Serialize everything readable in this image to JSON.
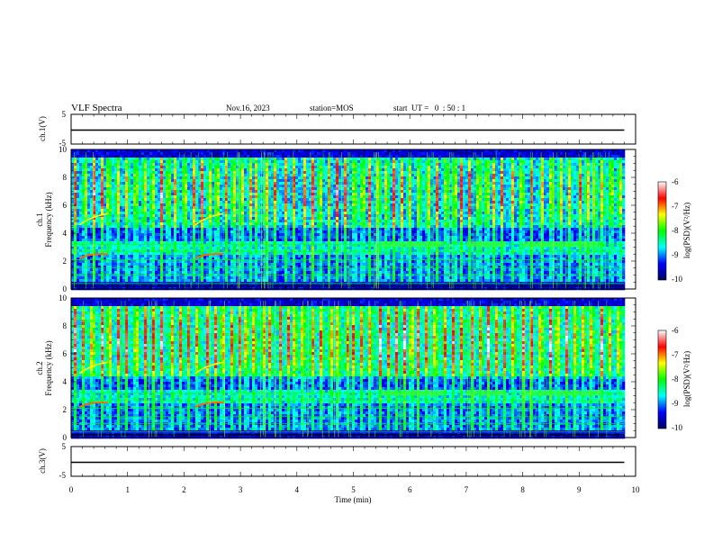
{
  "header": {
    "title": "VLF Spectra",
    "date": "Nov.16, 2023",
    "station": "station=MOS",
    "start": "start  UT =   0  : 50 : 1"
  },
  "colors": {
    "frame": "#000000",
    "colormap": [
      "#000060",
      "#0000ff",
      "#00ffff",
      "#00ff00",
      "#ffff00",
      "#ff0000",
      "#ffffff"
    ]
  },
  "chart_data": [
    {
      "type": "line",
      "name_label": "ch.1(V)",
      "ylim": [
        -5,
        5
      ],
      "yticks": [
        "5",
        "-5"
      ],
      "series": [
        {
          "x": [
            0,
            9.8
          ],
          "y": [
            0,
            0
          ]
        }
      ]
    },
    {
      "type": "heatmap",
      "ylabel": "ch.1\nFrequency (kHz)",
      "ylabel_lines": [
        "ch.1",
        "Frequency (kHz)"
      ],
      "ylim": [
        0,
        10
      ],
      "yticks": [
        "0",
        "2",
        "4",
        "6",
        "8",
        "10"
      ],
      "data_xlim": [
        0,
        9.8
      ],
      "colorbar": {
        "label": "log(PSD)(V²/Hz)",
        "ticks": [
          "-6",
          "-7",
          "-8",
          "-9",
          "-10"
        ],
        "range": [
          -10,
          -6
        ]
      }
    },
    {
      "type": "heatmap",
      "ylabel": "ch.2\nFrequency (kHz)",
      "ylabel_lines": [
        "ch.2",
        "Frequency (kHz)"
      ],
      "ylim": [
        0,
        10
      ],
      "yticks": [
        "0",
        "2",
        "4",
        "6",
        "8",
        "10"
      ],
      "data_xlim": [
        0,
        9.8
      ],
      "colorbar": {
        "label": "log(PSD)(V²/Hz)",
        "ticks": [
          "-6",
          "-7",
          "-8",
          "-9",
          "-10"
        ],
        "range": [
          -10,
          -6
        ]
      }
    },
    {
      "type": "line",
      "name_label": "ch.3(V)",
      "ylim": [
        -5,
        5
      ],
      "yticks": [
        "5",
        "-5"
      ],
      "series": [
        {
          "x": [
            0,
            9.8
          ],
          "y": [
            0,
            0
          ]
        }
      ]
    }
  ],
  "xaxis": {
    "label": "Time (min)",
    "xlim": [
      0,
      10
    ],
    "ticks": [
      "0",
      "1",
      "2",
      "3",
      "4",
      "5",
      "6",
      "7",
      "8",
      "9",
      "10"
    ]
  }
}
